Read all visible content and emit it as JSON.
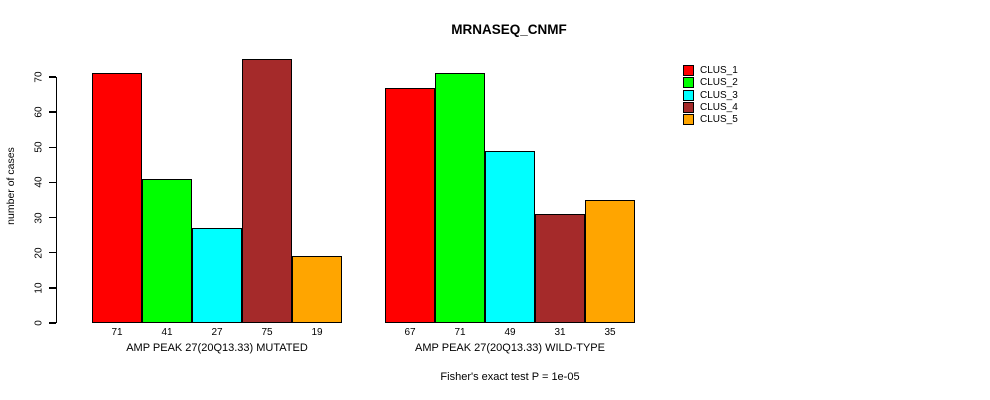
{
  "title": "MRNASEQ_CNMF",
  "y_axis": {
    "label": "number of cases"
  },
  "footer": "Fisher's exact test P = 1e-05",
  "chart_data": {
    "type": "bar",
    "title": "MRNASEQ_CNMF",
    "xlabel": "",
    "ylabel": "number of cases",
    "ylim": [
      0,
      70
    ],
    "yticks": [
      0,
      10,
      20,
      30,
      40,
      50,
      60,
      70
    ],
    "grid": false,
    "legend_position": "right",
    "bar_value_labels_shown": true,
    "series": [
      {
        "name": "CLUS_1",
        "color": "#FF0000"
      },
      {
        "name": "CLUS_2",
        "color": "#00FF00"
      },
      {
        "name": "CLUS_3",
        "color": "#00FFFF"
      },
      {
        "name": "CLUS_4",
        "color": "#A52A2A"
      },
      {
        "name": "CLUS_5",
        "color": "#FFA500"
      }
    ],
    "groups": [
      {
        "label": "AMP PEAK 27(20Q13.33) MUTATED",
        "values": [
          71,
          41,
          27,
          75,
          19
        ]
      },
      {
        "label": "AMP PEAK 27(20Q13.33) WILD-TYPE",
        "values": [
          67,
          71,
          49,
          31,
          35
        ]
      }
    ],
    "annotation": "Fisher's exact test P = 1e-05"
  }
}
